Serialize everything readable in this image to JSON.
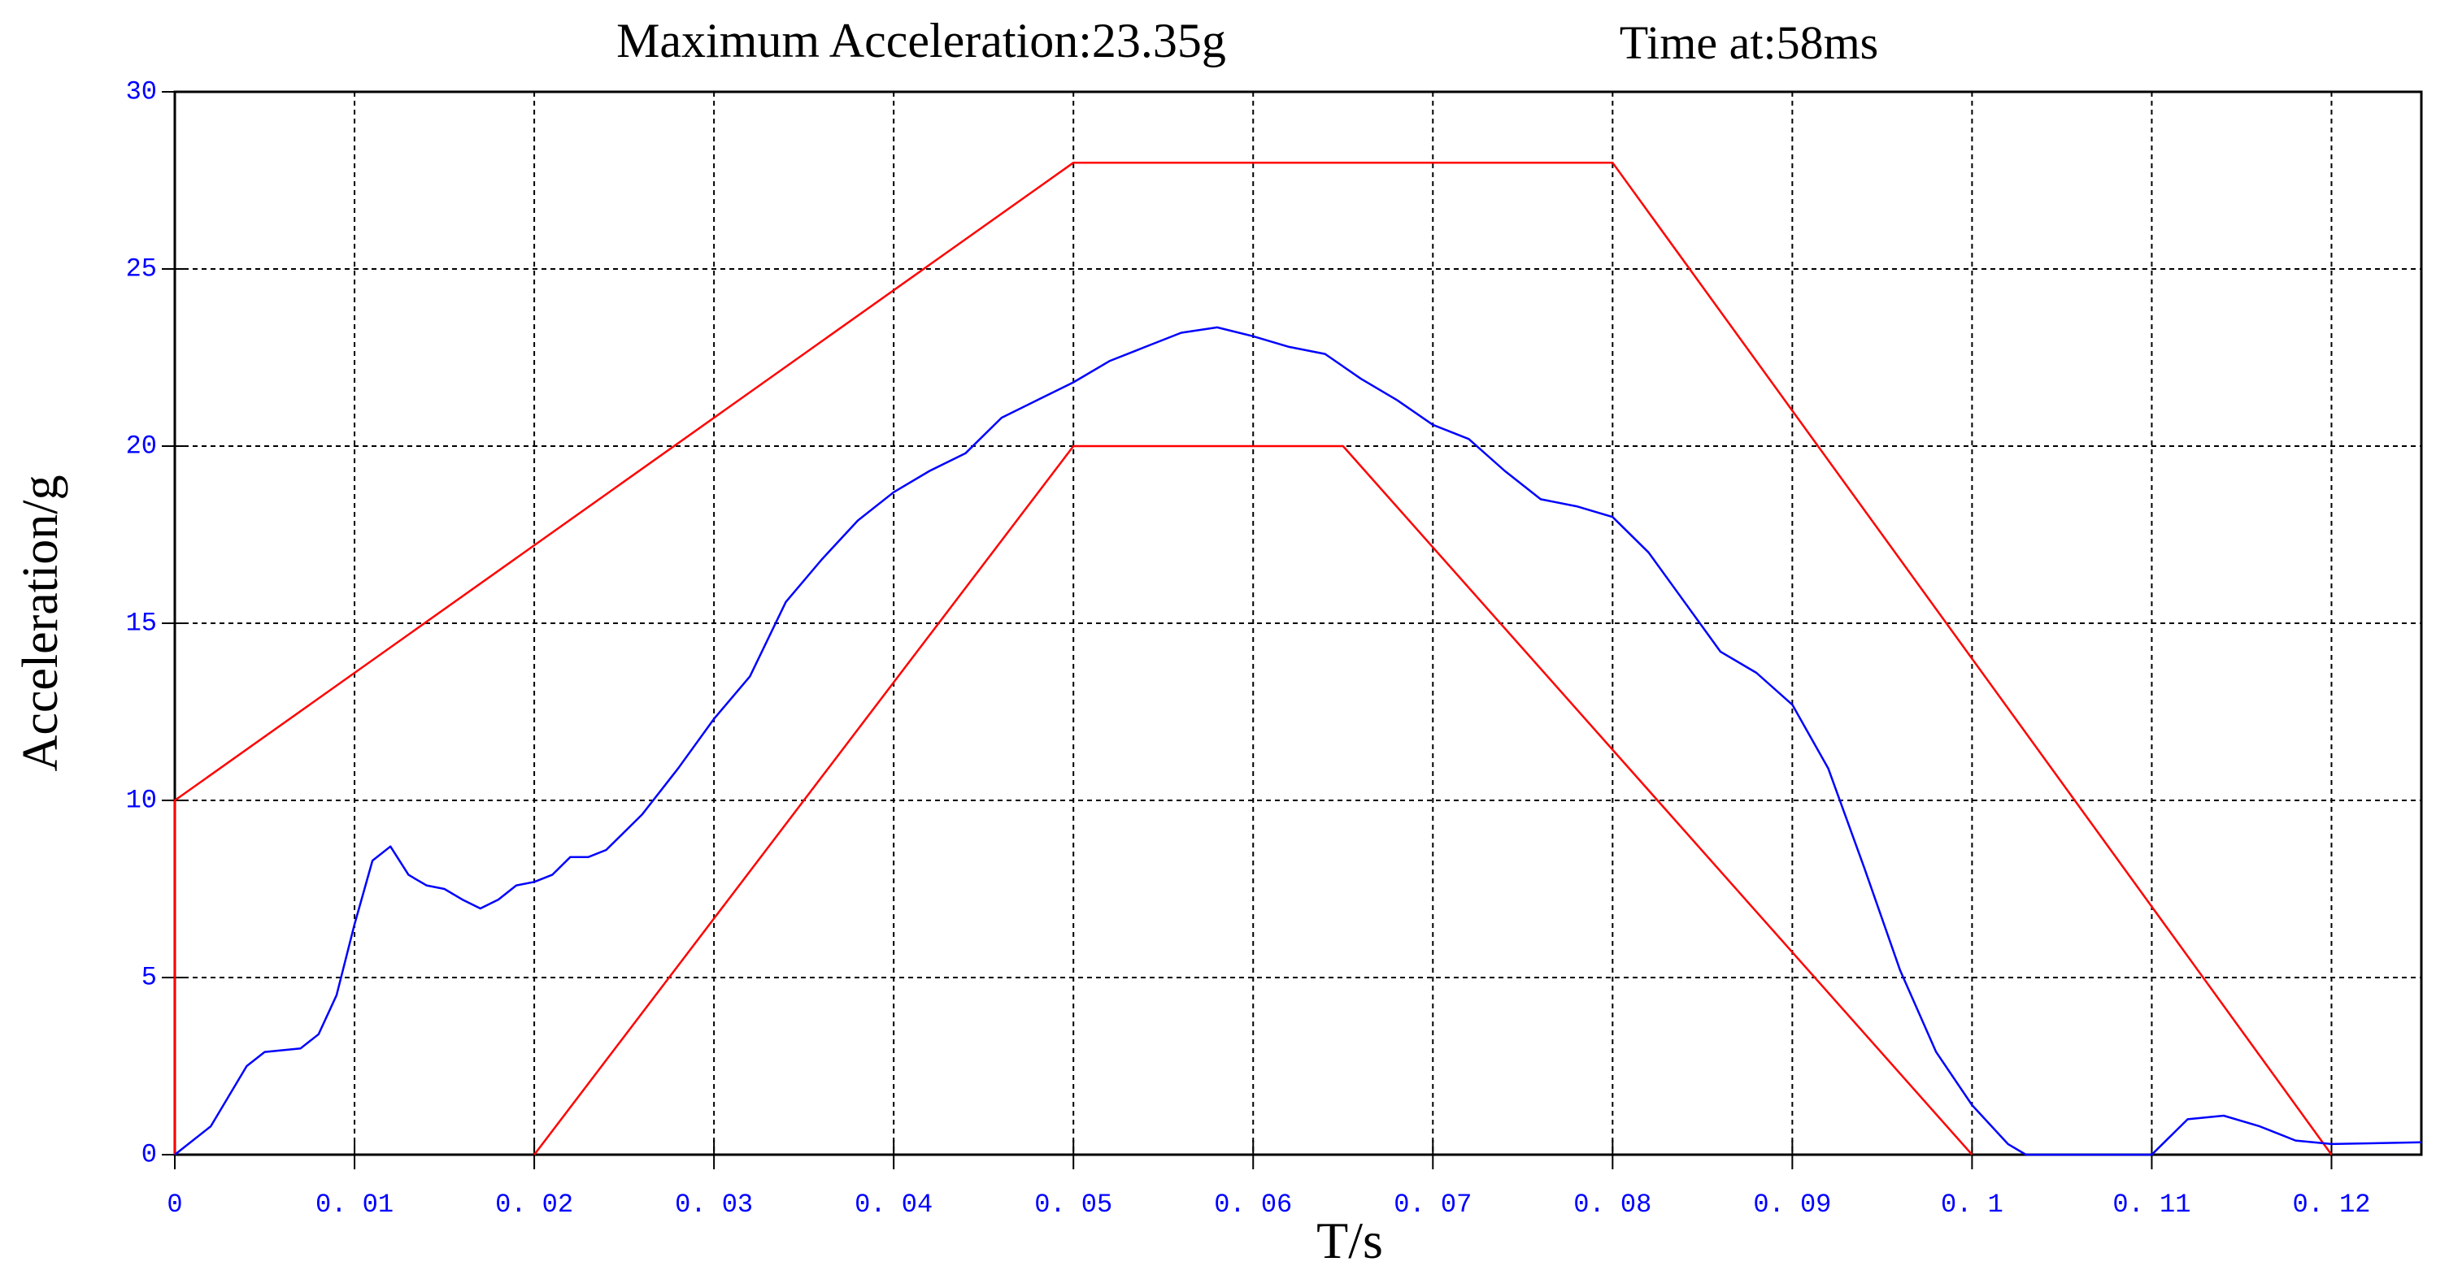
{
  "chart_data": {
    "type": "line",
    "title": "Maximum  Acceleration:23.35g",
    "annotation": "Time at:58ms",
    "xlabel": "T/s",
    "ylabel": "Acceleration/g",
    "xlim": [
      0,
      0.125
    ],
    "ylim": [
      0,
      30
    ],
    "xticks": [
      0,
      {
        "value": 0.01,
        "label": "0. 01"
      },
      {
        "value": 0.02,
        "label": "0. 02"
      },
      {
        "value": 0.03,
        "label": "0. 03"
      },
      {
        "value": 0.04,
        "label": "0. 04"
      },
      {
        "value": 0.05,
        "label": "0. 05"
      },
      {
        "value": 0.06,
        "label": "0. 06"
      },
      {
        "value": 0.07,
        "label": "0. 07"
      },
      {
        "value": 0.08,
        "label": "0. 08"
      },
      {
        "value": 0.09,
        "label": "0. 09"
      },
      {
        "value": 0.1,
        "label": "0. 1"
      },
      {
        "value": 0.11,
        "label": "0. 11"
      },
      {
        "value": 0.12,
        "label": "0. 12"
      }
    ],
    "yticks": [
      0,
      5,
      10,
      15,
      20,
      25,
      30
    ],
    "grid": true,
    "series": [
      {
        "color": "#ff0000",
        "x": [
          0,
          0,
          0.05,
          0.08,
          0.12
        ],
        "values": [
          0,
          10,
          28,
          28,
          0
        ]
      },
      {
        "color": "#ff0000",
        "x": [
          0.02,
          0.05,
          0.065,
          0.1
        ],
        "values": [
          0,
          20,
          20,
          0
        ]
      },
      {
        "color": "#0000ff",
        "x": [
          0,
          0.002,
          0.004,
          0.005,
          0.007,
          0.008,
          0.009,
          0.01,
          0.011,
          0.012,
          0.013,
          0.014,
          0.015,
          0.016,
          0.017,
          0.018,
          0.019,
          0.02,
          0.021,
          0.022,
          0.023,
          0.024,
          0.026,
          0.028,
          0.03,
          0.032,
          0.034,
          0.036,
          0.038,
          0.04,
          0.042,
          0.044,
          0.046,
          0.048,
          0.05,
          0.052,
          0.054,
          0.056,
          0.058,
          0.06,
          0.062,
          0.064,
          0.066,
          0.068,
          0.07,
          0.072,
          0.074,
          0.076,
          0.078,
          0.08,
          0.082,
          0.084,
          0.086,
          0.088,
          0.09,
          0.092,
          0.094,
          0.096,
          0.098,
          0.1,
          0.102,
          0.103,
          0.11,
          0.111,
          0.112,
          0.114,
          0.116,
          0.118,
          0.12,
          0.125
        ],
        "values": [
          0,
          0.8,
          2.5,
          2.9,
          3.0,
          3.4,
          4.5,
          6.5,
          8.3,
          8.7,
          7.9,
          7.6,
          7.5,
          7.2,
          6.95,
          7.2,
          7.6,
          7.7,
          7.9,
          8.4,
          8.4,
          8.6,
          9.6,
          10.9,
          12.3,
          13.5,
          15.6,
          16.8,
          17.9,
          18.7,
          19.3,
          19.8,
          20.8,
          21.3,
          21.8,
          22.4,
          22.8,
          23.2,
          23.35,
          23.1,
          22.8,
          22.6,
          21.9,
          21.3,
          20.6,
          20.2,
          19.3,
          18.5,
          18.3,
          18.0,
          17.0,
          15.6,
          14.2,
          13.6,
          12.7,
          10.9,
          8.1,
          5.2,
          2.9,
          1.4,
          0.3,
          0,
          0,
          0.5,
          1.0,
          1.1,
          0.8,
          0.4,
          0.3,
          0.35
        ]
      }
    ]
  }
}
